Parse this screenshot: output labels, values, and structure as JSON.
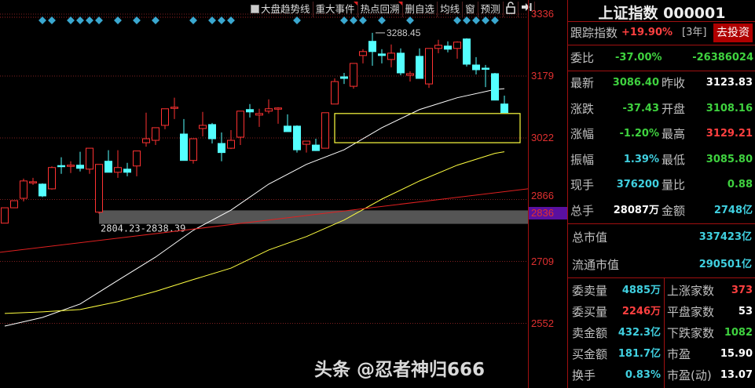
{
  "toolbar": {
    "trend_checkbox_label": "大盘趋势线",
    "items": [
      "重大事件",
      "热点回溯",
      "删自选",
      "均线",
      "窗",
      "预测"
    ],
    "lock_icon": "lock-icon",
    "collapse_icon": "arrow-to-right-icon"
  },
  "chart_data": {
    "type": "candlestick",
    "y_ticks": [
      "3336",
      "3179",
      "3022",
      "2866",
      "2709",
      "2552"
    ],
    "y_tick_values": [
      3336,
      3179,
      3022,
      2866,
      2709,
      2552
    ],
    "ylim": [
      2400,
      3370
    ],
    "highlight_label": "2836",
    "high_marker": "3288.45",
    "high_marker_index": 39,
    "gap_band": {
      "label": "2804.23-2838.39",
      "low": 2804.23,
      "high": 2838.39,
      "start_index": 10
    },
    "box_annotation": {
      "low": 3010,
      "high": 3084,
      "start_index": 35
    },
    "event_marker_indices": [
      4,
      5,
      7,
      8,
      9,
      10,
      12,
      14,
      16,
      20,
      22,
      23,
      24,
      31,
      36,
      37,
      38,
      40,
      43,
      48,
      49,
      50,
      51,
      52
    ],
    "ohlc": [
      [
        2806,
        2845,
        2806,
        2845
      ],
      [
        2845,
        2863,
        2845,
        2863
      ],
      [
        2869,
        2919,
        2861,
        2913
      ],
      [
        2909,
        2921,
        2903,
        2911
      ],
      [
        2905,
        2907,
        2872,
        2875
      ],
      [
        2893,
        2950,
        2891,
        2947
      ],
      [
        2952,
        2973,
        2931,
        2950
      ],
      [
        2951,
        2963,
        2933,
        2953
      ],
      [
        2953,
        2987,
        2937,
        2945
      ],
      [
        2943,
        2996,
        2931,
        2996
      ],
      [
        2834,
        2955,
        2830,
        2955
      ],
      [
        2963,
        2991,
        2935,
        2935
      ],
      [
        2935,
        2991,
        2921,
        2947
      ],
      [
        2943,
        2959,
        2925,
        2935
      ],
      [
        2951,
        2989,
        2925,
        2989
      ],
      [
        3010,
        3086,
        3000,
        3020
      ],
      [
        3016,
        3048,
        3004,
        3048
      ],
      [
        3054,
        3096,
        3044,
        3096
      ],
      [
        3098,
        3124,
        3070,
        3100
      ],
      [
        3032,
        3070,
        2965,
        2965
      ],
      [
        2965,
        3020,
        2957,
        3020
      ],
      [
        3046,
        3088,
        3026,
        3054
      ],
      [
        3056,
        3060,
        3008,
        3020
      ],
      [
        3008,
        3036,
        2963,
        2985
      ],
      [
        2996,
        3042,
        2994,
        3016
      ],
      [
        3024,
        3090,
        3004,
        3090
      ],
      [
        3094,
        3108,
        3074,
        3088
      ],
      [
        3080,
        3096,
        3050,
        3084
      ],
      [
        3090,
        3120,
        3084,
        3096
      ],
      [
        3096,
        3100,
        3058,
        3098
      ],
      [
        3052,
        3082,
        3038,
        3038
      ],
      [
        3052,
        3054,
        2985,
        2992
      ],
      [
        3006,
        3014,
        2985,
        3014
      ],
      [
        3004,
        3020,
        2989,
        2990
      ],
      [
        2996,
        3086,
        2996,
        3086
      ],
      [
        3108,
        3173,
        3108,
        3165
      ],
      [
        3177,
        3187,
        3159,
        3173
      ],
      [
        3153,
        3211,
        3147,
        3211
      ],
      [
        3231,
        3247,
        3211,
        3241
      ],
      [
        3267,
        3288.45,
        3205,
        3241
      ],
      [
        3235,
        3247,
        3211,
        3231
      ],
      [
        3221,
        3259,
        3201,
        3237
      ],
      [
        3237,
        3249,
        3181,
        3187
      ],
      [
        3181,
        3191,
        3165,
        3185
      ],
      [
        3229,
        3249,
        3173,
        3173
      ],
      [
        3159,
        3249,
        3149,
        3249
      ],
      [
        3249,
        3271,
        3237,
        3257
      ],
      [
        3255,
        3267,
        3239,
        3247
      ],
      [
        3249,
        3267,
        3223,
        3265
      ],
      [
        3273,
        3275,
        3203,
        3209
      ],
      [
        3207,
        3227,
        3183,
        3195
      ],
      [
        3199,
        3207,
        3151,
        3197
      ],
      [
        3185,
        3187,
        3118,
        3118
      ],
      [
        3108.16,
        3129.21,
        3085.8,
        3086.4
      ]
    ],
    "ma_lines": [
      {
        "color": "#ffffff",
        "points": [
          [
            0,
            2545
          ],
          [
            4,
            2567
          ],
          [
            8,
            2601
          ],
          [
            12,
            2661
          ],
          [
            16,
            2720
          ],
          [
            20,
            2788
          ],
          [
            24,
            2839
          ],
          [
            28,
            2905
          ],
          [
            32,
            2955
          ],
          [
            36,
            2992
          ],
          [
            40,
            3048
          ],
          [
            44,
            3094
          ],
          [
            48,
            3124
          ],
          [
            52,
            3145
          ],
          [
            53,
            3147
          ]
        ]
      },
      {
        "color": "#ffff40",
        "points": [
          [
            0,
            2577
          ],
          [
            4,
            2581
          ],
          [
            8,
            2587
          ],
          [
            12,
            2607
          ],
          [
            16,
            2633
          ],
          [
            20,
            2663
          ],
          [
            24,
            2692
          ],
          [
            28,
            2738
          ],
          [
            32,
            2772
          ],
          [
            36,
            2814
          ],
          [
            40,
            2867
          ],
          [
            44,
            2913
          ],
          [
            48,
            2953
          ],
          [
            52,
            2983
          ],
          [
            53,
            2987
          ]
        ]
      },
      {
        "color": "#e02020",
        "points": [
          [
            -0.5,
            2732
          ],
          [
            55.5,
            2893
          ]
        ]
      }
    ],
    "up_color": "#ff3232",
    "down_color": "#54ffff"
  },
  "panel": {
    "title": "上证指数 000001",
    "track_label": "跟踪指数",
    "track_value": "+19.90%",
    "track_period": "[3年]",
    "invest_button": "去投资",
    "weibi_label": "委比",
    "weibi_pct": "-37.00%",
    "weibi_value": "-26386024",
    "rows": [
      {
        "l1": "最新",
        "v1": "3086.40",
        "l2": "昨收",
        "v2": "3123.83"
      },
      {
        "l1": "涨跌",
        "v1": "-37.43",
        "l2": "开盘",
        "v2": "3108.16"
      },
      {
        "l1": "涨幅",
        "v1": "-1.20%",
        "l2": "最高",
        "v2": "3129.21"
      },
      {
        "l1": "振幅",
        "v1": "1.39%",
        "l2": "最低",
        "v2": "3085.80"
      },
      {
        "l1": "现手",
        "v1": "376200",
        "l2": "量比",
        "v2": "0.88"
      },
      {
        "l1": "总手",
        "v1": "28087万",
        "l2": "金额",
        "v2": "2748亿"
      }
    ],
    "total_mv_label": "总市值",
    "total_mv": "337423亿",
    "float_mv_label": "流通市值",
    "float_mv": "290501亿",
    "lower": [
      {
        "l1": "委卖量",
        "v1": "4885万",
        "l2": "上涨家数",
        "v2": "373"
      },
      {
        "l1": "委买量",
        "v1": "2246万",
        "l2": "平盘家数",
        "v2": "53"
      },
      {
        "l1": "卖金额",
        "v1": "432.3亿",
        "l2": "下跌家数",
        "v2": "1082"
      },
      {
        "l1": "买金额",
        "v1": "181.7亿",
        "l2": "市盈",
        "v2": "15.90"
      },
      {
        "l1": "换手",
        "v1": "0.83%",
        "l2": "市盈(动)",
        "v2": "13.07"
      }
    ]
  },
  "watermark": "头条 @忍者神归666"
}
